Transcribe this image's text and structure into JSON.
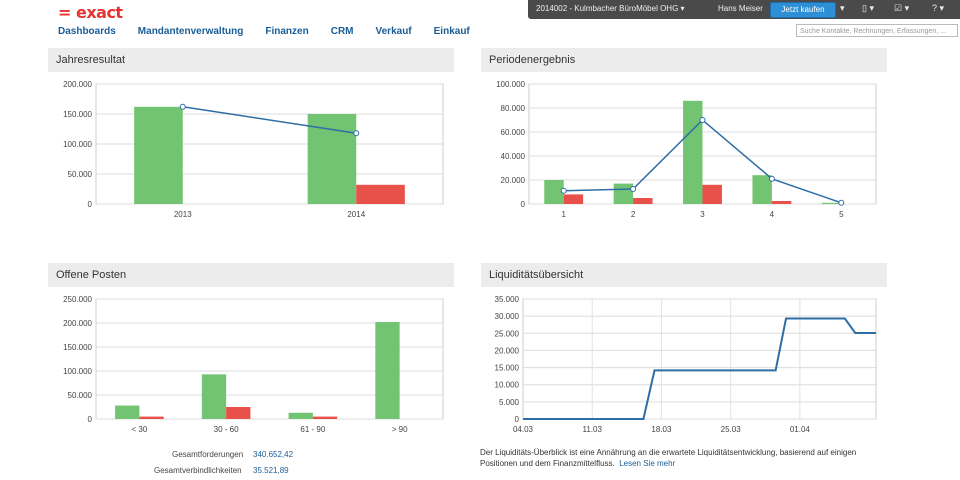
{
  "brand": "= exact",
  "nav": [
    "Dashboards",
    "Mandantenverwaltung",
    "Finanzen",
    "CRM",
    "Verkauf",
    "Einkauf"
  ],
  "topbar": {
    "company": "2014002 - Kulmbacher BüroMöbel OHG",
    "user": "Hans Meiser",
    "buy_label": "Jetzt kaufen",
    "search_placeholder": "Suche Kontakte, Rechnungen, Erfassungen, ..."
  },
  "panels": {
    "p1": "Jahresresultat",
    "p2": "Periodenergebnis",
    "p3": "Offene Posten",
    "p4": "Liquiditätsübersicht"
  },
  "summary": {
    "forderungen_label": "Gesamtforderungen",
    "forderungen_value": "340.652,42",
    "verbindlichkeiten_label": "Gesamtverbindlichkeiten",
    "verbindlichkeiten_value": "35.521,89"
  },
  "note": {
    "text": "Der Liquiditäts-Überblick ist eine Annährung an die erwartete Liquiditätsentwicklung, basierend auf einigen Positionen und dem Finanzmittelfluss.",
    "link": "Lesen Sie mehr"
  },
  "colors": {
    "green": "#72c472",
    "red": "#e8504a",
    "line": "#2f6ea5",
    "brand": "#e8322f",
    "nav": "#1a5d96"
  },
  "chart_data": [
    {
      "type": "bar",
      "categories": [
        "2013",
        "2014"
      ],
      "ylim": [
        0,
        200000
      ],
      "yticks": [
        "0",
        "50.000",
        "100.000",
        "150.000",
        "200.000"
      ],
      "series": [
        {
          "values": [
            162000,
            150000
          ],
          "color": "#72c472"
        },
        {
          "values": [
            0,
            32000
          ],
          "color": "#e8504a"
        },
        {
          "values": [
            162000,
            118000
          ],
          "color": "#2f6ea5",
          "kind": "line"
        }
      ]
    },
    {
      "type": "bar",
      "categories": [
        "1",
        "2",
        "3",
        "4",
        "5"
      ],
      "ylim": [
        0,
        100000
      ],
      "yticks": [
        "0",
        "20.000",
        "40.000",
        "60.000",
        "80.000",
        "100.000"
      ],
      "series": [
        {
          "values": [
            20000,
            17000,
            86000,
            24000,
            1000
          ],
          "color": "#72c472"
        },
        {
          "values": [
            8000,
            5000,
            16000,
            2500,
            0
          ],
          "color": "#e8504a"
        },
        {
          "values": [
            11000,
            12500,
            70000,
            21000,
            1000
          ],
          "color": "#2f6ea5",
          "kind": "line"
        }
      ]
    },
    {
      "type": "bar",
      "categories": [
        "< 30",
        "30 - 60",
        "61 - 90",
        "> 90"
      ],
      "ylim": [
        0,
        250000
      ],
      "yticks": [
        "0",
        "50.000",
        "100.000",
        "150.000",
        "200.000",
        "250.000"
      ],
      "series": [
        {
          "values": [
            28000,
            93000,
            13000,
            202000
          ],
          "color": "#72c472"
        },
        {
          "values": [
            5000,
            25000,
            5000,
            0
          ],
          "color": "#e8504a"
        }
      ]
    },
    {
      "type": "line",
      "categories": [
        "04.03",
        "11.03",
        "18.03",
        "25.03",
        "01.04"
      ],
      "ylim": [
        0,
        35000
      ],
      "yticks": [
        "0",
        "5.000",
        "10.000",
        "15.000",
        "20.000",
        "25.000",
        "30.000",
        "35.000"
      ],
      "series": [
        {
          "color": "#2f6ea5",
          "points": [
            [
              0,
              0
            ],
            [
              1.74,
              0
            ],
            [
              1.9,
              14200
            ],
            [
              3.65,
              14200
            ],
            [
              3.8,
              29300
            ],
            [
              4.65,
              29300
            ],
            [
              4.8,
              25100
            ],
            [
              5.1,
              25100
            ]
          ]
        }
      ]
    }
  ]
}
